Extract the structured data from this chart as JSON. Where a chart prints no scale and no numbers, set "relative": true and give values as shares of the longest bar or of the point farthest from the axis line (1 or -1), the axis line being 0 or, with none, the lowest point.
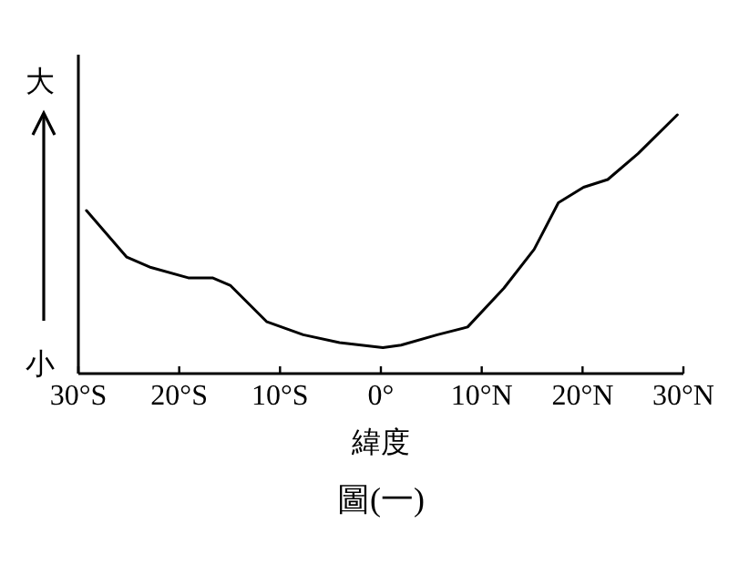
{
  "chart_data": {
    "type": "line",
    "relative": true,
    "title": "圖(一)",
    "xlabel": "緯度",
    "annotations": [
      "大",
      "小"
    ],
    "xlim": [
      -30,
      30
    ],
    "xticks": [
      {
        "value": -30,
        "label": "30°S"
      },
      {
        "value": -20,
        "label": "20°S"
      },
      {
        "value": -10,
        "label": "10°S"
      },
      {
        "value": 0,
        "label": "0°"
      },
      {
        "value": 10,
        "label": "10°N"
      },
      {
        "value": 20,
        "label": "20°N"
      },
      {
        "value": 30,
        "label": "30°N"
      }
    ],
    "series": [
      {
        "color": "#000000",
        "x": [
          -29.2,
          -25.2,
          -22.8,
          -19.1,
          -16.7,
          -14.9,
          -11.3,
          -7.7,
          -4.1,
          0.2,
          2.0,
          5.6,
          8.6,
          12.2,
          15.2,
          17.6,
          20.1,
          22.5,
          25.5,
          29.4
        ],
        "values": [
          0.63,
          0.45,
          0.41,
          0.37,
          0.37,
          0.34,
          0.2,
          0.15,
          0.12,
          0.1,
          0.11,
          0.15,
          0.18,
          0.33,
          0.48,
          0.66,
          0.72,
          0.75,
          0.85,
          1.0
        ]
      }
    ],
    "grid": false,
    "marker": "none",
    "line_style": "solid"
  }
}
